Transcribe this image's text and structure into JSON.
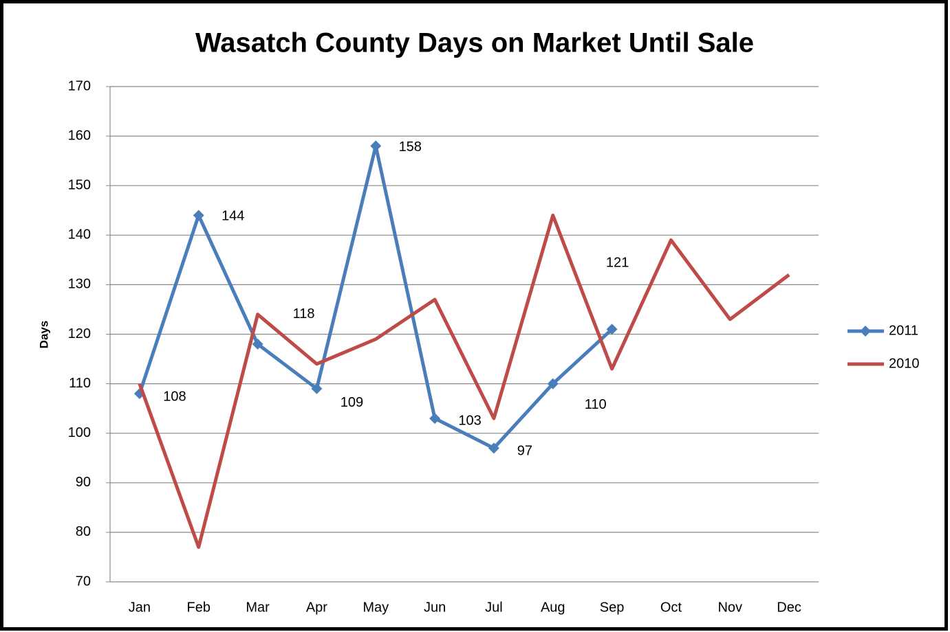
{
  "chart_data": {
    "type": "line",
    "title": "Wasatch  County Days on Market Until Sale",
    "y_label": "Days",
    "categories": [
      "Jan",
      "Feb",
      "Mar",
      "Apr",
      "May",
      "Jun",
      "Jul",
      "Aug",
      "Sep",
      "Oct",
      "Nov",
      "Dec"
    ],
    "series": [
      {
        "name": "2011",
        "color": "#4a7ebb",
        "marker": "diamond",
        "data_labels": true,
        "values": [
          108,
          144,
          118,
          109,
          158,
          103,
          97,
          110,
          121,
          null,
          null,
          null
        ]
      },
      {
        "name": "2010",
        "color": "#be4b48",
        "marker": "none",
        "data_labels": false,
        "values": [
          110,
          77,
          124,
          114,
          119,
          127,
          103,
          144,
          113,
          139,
          123,
          132
        ]
      }
    ],
    "ylim": [
      70,
      170
    ],
    "yticks": [
      70,
      80,
      90,
      100,
      110,
      120,
      130,
      140,
      150,
      160,
      170
    ],
    "grid": true,
    "legend": "right"
  }
}
